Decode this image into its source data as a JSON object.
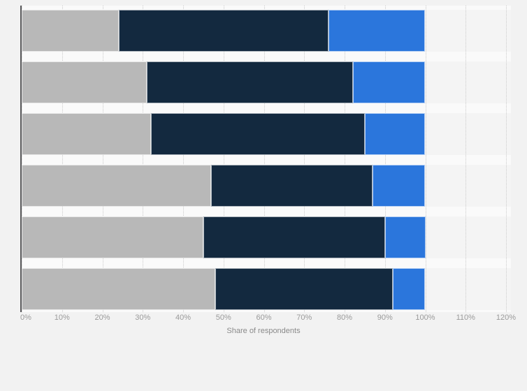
{
  "page": {
    "background_color": "#f2f2f2",
    "plot_background_color": "#f4f4f4",
    "gap_stripe_color": "#fafafa",
    "grid_color": "#cbcbcb",
    "axis_line_color": "#58585a",
    "tick_text_color": "#9a9a9a",
    "axis_title_color": "#8a8a8a"
  },
  "chart_data": {
    "type": "bar",
    "orientation": "horizontal",
    "stacked": true,
    "title": "",
    "xlabel": "Share of respondents",
    "ylabel": "",
    "categories": [
      "",
      "",
      "",
      "",
      "",
      ""
    ],
    "series": [
      {
        "name": "segment-1-gray",
        "color": "#b8b8b8",
        "values": [
          24,
          31,
          32,
          47,
          45,
          48
        ]
      },
      {
        "name": "segment-2-dark-navy",
        "color": "#13293f",
        "values": [
          52,
          51,
          53,
          40,
          45,
          44
        ]
      },
      {
        "name": "segment-3-blue",
        "color": "#2b76dc",
        "values": [
          24,
          18,
          15,
          13,
          10,
          8
        ]
      }
    ],
    "x_ticks": [
      "0%",
      "10%",
      "20%",
      "30%",
      "40%",
      "50%",
      "60%",
      "70%",
      "80%",
      "90%",
      "100%",
      "110%",
      "120%"
    ],
    "xlim": [
      0,
      120
    ],
    "grid": "vertical-dotted",
    "legend": "none"
  }
}
